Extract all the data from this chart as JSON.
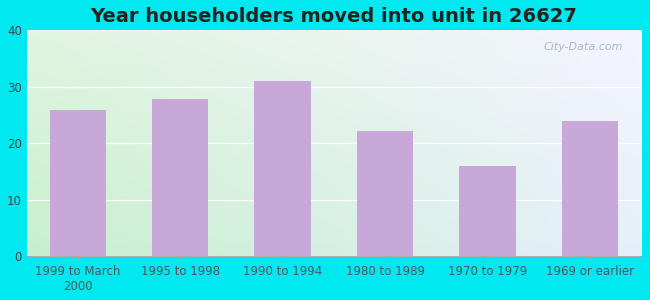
{
  "title": "Year householders moved into unit in 26627",
  "categories": [
    "1999 to March\n2000",
    "1995 to 1998",
    "1990 to 1994",
    "1980 to 1989",
    "1970 to 1979",
    "1969 or earlier"
  ],
  "values": [
    25.8,
    27.8,
    31.0,
    22.2,
    16.0,
    24.0
  ],
  "bar_color": "#c8a8d8",
  "background_outer": "#00e8f0",
  "bg_color_topleft": "#d8f0d8",
  "bg_color_topright": "#f0f0ff",
  "bg_color_bottomleft": "#c8ecc8",
  "bg_color_bottomright": "#e8eeff",
  "ylim": [
    0,
    40
  ],
  "yticks": [
    0,
    10,
    20,
    30,
    40
  ],
  "title_fontsize": 14,
  "tick_fontsize": 8.5,
  "watermark": "City-Data.com"
}
